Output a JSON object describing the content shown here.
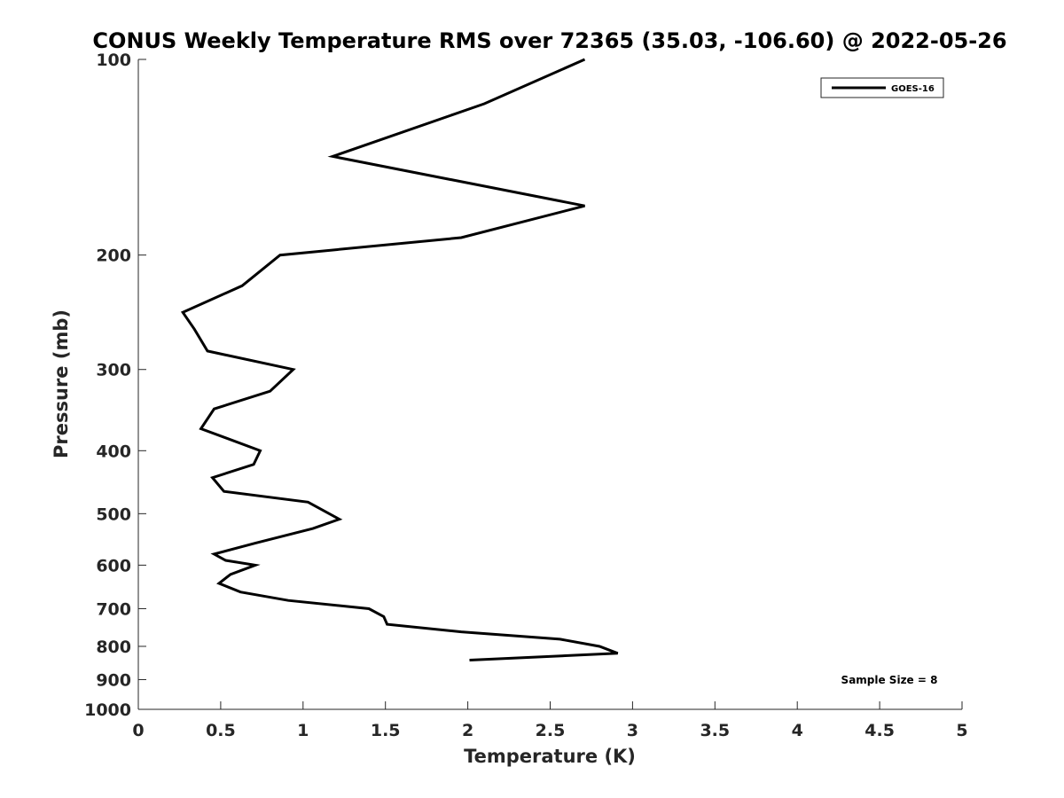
{
  "chart_data": {
    "type": "line",
    "title": "CONUS Weekly Temperature RMS over 72365 (35.03, -106.60) @ 2022-05-26",
    "xlabel": "Temperature (K)",
    "ylabel": "Pressure (mb)",
    "xlim": [
      0,
      5
    ],
    "ylim": [
      100,
      1000
    ],
    "y_scale": "log",
    "y_reversed": true,
    "x_ticks": [
      "0",
      "0.5",
      "1",
      "1.5",
      "2",
      "2.5",
      "3",
      "3.5",
      "4",
      "4.5",
      "5"
    ],
    "y_ticks": [
      "100",
      "200",
      "300",
      "400",
      "500",
      "600",
      "700",
      "800",
      "900",
      "1000"
    ],
    "grid": false,
    "legend_position": "top-right",
    "line_color": "#000000",
    "series": [
      {
        "name": "GOES-16",
        "x": [
          2.71,
          2.1,
          1.18,
          2.71,
          1.96,
          0.86,
          0.63,
          0.27,
          0.34,
          0.42,
          0.94,
          0.8,
          0.46,
          0.38,
          0.74,
          0.7,
          0.45,
          0.52,
          1.03,
          1.22,
          1.06,
          0.71,
          0.46,
          0.53,
          0.71,
          0.56,
          0.49,
          0.62,
          0.91,
          1.4,
          1.49,
          1.51,
          1.96,
          2.56,
          2.8,
          2.91,
          2.01
        ],
        "y": [
          100,
          117,
          141,
          168,
          188,
          200,
          223,
          245,
          260,
          281,
          300,
          324,
          345,
          370,
          400,
          420,
          440,
          462,
          480,
          510,
          527,
          555,
          577,
          590,
          600,
          620,
          640,
          660,
          680,
          700,
          720,
          740,
          760,
          780,
          800,
          820,
          840
        ]
      }
    ],
    "annotations": [
      "Sample Size = 8"
    ]
  }
}
